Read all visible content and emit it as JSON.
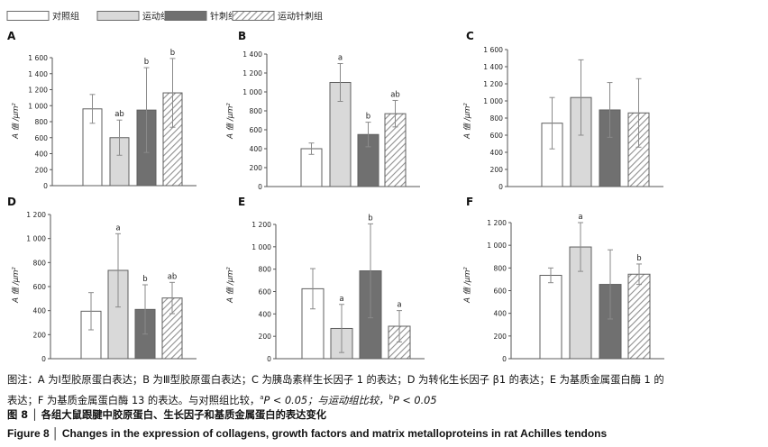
{
  "legend": [
    {
      "label": "对照组",
      "style": "white"
    },
    {
      "label": "运动组",
      "style": "light"
    },
    {
      "label": "针刺组",
      "style": "dark"
    },
    {
      "label": "运动针刺组",
      "style": "hatch"
    }
  ],
  "colors": {
    "white": "#ffffff",
    "light": "#d9d9d9",
    "dark": "#707070",
    "hatch_stroke": "#909090",
    "axis": "#555555",
    "error": "#8a8a8a"
  },
  "y_label_main": "A 值 /μm",
  "y_label_sup": "2",
  "chart_data": [
    {
      "type": "bar",
      "panel": "A",
      "categories": [
        "对照组",
        "运动组",
        "针刺组",
        "运动针刺组"
      ],
      "values": [
        960,
        600,
        945,
        1160
      ],
      "errors": [
        180,
        220,
        530,
        430
      ],
      "marks": [
        "",
        "ab",
        "b",
        "b"
      ],
      "ylim": [
        0,
        1600
      ],
      "yticks": [
        "0",
        "200",
        "400",
        "600",
        "800",
        "1 000",
        "1 200",
        "1 400",
        "1 600"
      ],
      "ylabel": "A 值 /μm2"
    },
    {
      "type": "bar",
      "panel": "B",
      "categories": [
        "对照组",
        "运动组",
        "针刺组",
        "运动针刺组"
      ],
      "values": [
        400,
        1100,
        550,
        770
      ],
      "errors": [
        60,
        200,
        130,
        140
      ],
      "marks": [
        "",
        "a",
        "b",
        "ab"
      ],
      "ylim": [
        0,
        1400
      ],
      "yticks": [
        "0",
        "200",
        "400",
        "600",
        "800",
        "1 000",
        "1 200",
        "1 400"
      ],
      "ylabel": "A 值 /μm2"
    },
    {
      "type": "bar",
      "panel": "C",
      "categories": [
        "对照组",
        "运动组",
        "针刺组",
        "运动针刺组"
      ],
      "values": [
        740,
        1040,
        895,
        860
      ],
      "errors": [
        300,
        440,
        320,
        400
      ],
      "marks": [
        "",
        "",
        "",
        ""
      ],
      "ylim": [
        0,
        1600
      ],
      "yticks": [
        "0",
        "200",
        "400",
        "600",
        "800",
        "1 000",
        "1 200",
        "1 400",
        "1 600"
      ],
      "ylabel": "A 值 /μm2"
    },
    {
      "type": "bar",
      "panel": "D",
      "categories": [
        "对照组",
        "运动组",
        "针刺组",
        "运动针刺组"
      ],
      "values": [
        395,
        735,
        410,
        505
      ],
      "errors": [
        155,
        305,
        205,
        130
      ],
      "marks": [
        "",
        "a",
        "b",
        "ab"
      ],
      "ylim": [
        0,
        1200
      ],
      "yticks": [
        "0",
        "200",
        "400",
        "600",
        "800",
        "1 000",
        "1 200"
      ],
      "ylabel": "A 值 /μm2"
    },
    {
      "type": "bar",
      "panel": "E",
      "categories": [
        "对照组",
        "运动组",
        "针刺组",
        "运动针刺组"
      ],
      "values": [
        625,
        270,
        785,
        290
      ],
      "errors": [
        180,
        215,
        420,
        140
      ],
      "marks": [
        "",
        "a",
        "b",
        "a"
      ],
      "ylim": [
        0,
        1200
      ],
      "yticks": [
        "0",
        "200",
        "400",
        "600",
        "800",
        "1 000",
        "1 200"
      ],
      "ylabel": "A 值 /μm2"
    },
    {
      "type": "bar",
      "panel": "F",
      "categories": [
        "对照组",
        "运动组",
        "针刺组",
        "运动针刺组"
      ],
      "values": [
        735,
        985,
        655,
        745
      ],
      "errors": [
        65,
        215,
        305,
        90
      ],
      "marks": [
        "",
        "a",
        "",
        "b"
      ],
      "ylim": [
        0,
        1200
      ],
      "yticks": [
        "0",
        "200",
        "400",
        "600",
        "800",
        "1 000",
        "1 200"
      ],
      "ylabel": "A 值 /μm2"
    }
  ],
  "caption": {
    "line1": "图注：A 为Ⅰ型胶原蛋白表达；B 为Ⅲ型胶原蛋白表达；C 为胰岛素样生长因子 1 的表达；D 为转化生长因子 β1 的表达；E 为基质金属蛋白酶 1 的",
    "line2_a": "表达；F 为基质金属蛋白酶 13 的表达。与对照组比较，",
    "sup_a": "a",
    "line2_b": "P < 0.05；与运动组比较，",
    "sup_b": "b",
    "line2_c": "P < 0.05",
    "line3": "图 8 │ 各组大鼠跟腱中胶原蛋白、生长因子和基质金属蛋白的表达变化",
    "line4": "Figure 8 │ Changes in the expression of collagens, growth factors and matrix metalloproteins in rat Achilles tendons"
  }
}
